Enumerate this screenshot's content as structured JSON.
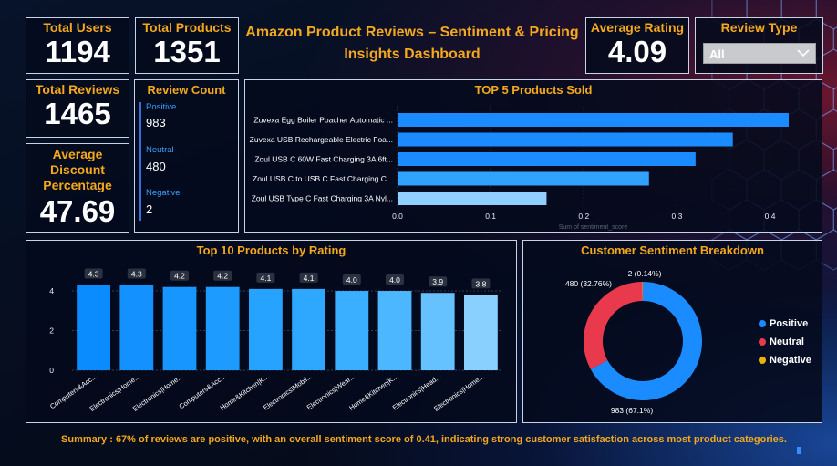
{
  "kpis": {
    "total_users_label": "Total Users",
    "total_users_value": "1194",
    "total_products_label": "Total Products",
    "total_products_value": "1351",
    "avg_rating_label": "Average Rating",
    "avg_rating_value": "4.09",
    "total_reviews_label": "Total Reviews",
    "total_reviews_value": "1465",
    "avg_discount_label": "Average Discount Percentage",
    "avg_discount_value": "47.69"
  },
  "dashboard_title": "Amazon Product Reviews – Sentiment & Pricing Insights Dashboard",
  "review_type": {
    "label": "Review Type",
    "selected": "All"
  },
  "review_count": {
    "title": "Review Count",
    "items": [
      {
        "label": "Positive",
        "value": "983"
      },
      {
        "label": "Neutral",
        "value": "480"
      },
      {
        "label": "Negative",
        "value": "2"
      }
    ]
  },
  "colors": {
    "accent": "#f4a81d",
    "positive": "#1a8cff",
    "neutral": "#e8394d",
    "negative": "#e8b400"
  },
  "chart_data": [
    {
      "id": "top5",
      "type": "bar",
      "orientation": "horizontal",
      "title": "TOP 5 Products Sold",
      "xlabel": "Sum of sentiment_score",
      "categories": [
        "Zuvexa Egg Boiler Poacher Automatic ...",
        "Zuvexa USB Rechargeable Electric Foa...",
        "Zoul USB C 60W Fast Charging 3A 6ft...",
        "Zoul USB C to USB C Fast Charging C...",
        "Zoul USB Type C Fast Charging 3A Nyl..."
      ],
      "values": [
        0.42,
        0.36,
        0.32,
        0.27,
        0.16
      ],
      "xlim": [
        0,
        0.42
      ],
      "xticks": [
        "0.0",
        "0.1",
        "0.2",
        "0.3",
        "0.4"
      ],
      "bar_colors": [
        "#1a8cff",
        "#1a8cff",
        "#1a8cff",
        "#2fa3ff",
        "#8fd0ff"
      ]
    },
    {
      "id": "top10",
      "type": "bar",
      "title": "Top 10 Products by Rating",
      "categories": [
        "Computers&Acc...",
        "Electronics|Home...",
        "Electronics|Home...",
        "Computers&Acc...",
        "Home&Kitchen|K...",
        "Electronics|Mobil...",
        "Electronics|Wear...",
        "Home&Kitchen|K...",
        "Electronics|Head...",
        "Electronics|Home..."
      ],
      "values": [
        4.3,
        4.3,
        4.2,
        4.2,
        4.1,
        4.1,
        4.0,
        4.0,
        3.9,
        3.8
      ],
      "labels": [
        "4.3",
        "4.3",
        "4.2",
        "4.2",
        "4.1",
        "4.1",
        "4.0",
        "4.0",
        "3.9",
        "3.8"
      ],
      "ylim": [
        0,
        4.6
      ],
      "yticks": [
        "0",
        "2",
        "4"
      ],
      "bar_colors": [
        "#0a8cff",
        "#1291ff",
        "#1896ff",
        "#1e9bff",
        "#26a2ff",
        "#2ea8ff",
        "#3aaeff",
        "#4cb6ff",
        "#66c2ff",
        "#8ad0ff"
      ]
    },
    {
      "id": "sentiment",
      "type": "pie",
      "donut": true,
      "title": "Customer Sentiment Breakdown",
      "categories": [
        "Positive",
        "Neutral",
        "Negative"
      ],
      "values": [
        983,
        480,
        2
      ],
      "labels": [
        "983 (67.1%)",
        "480 (32.76%)",
        "2 (0.14%)"
      ],
      "colors": [
        "#1a8cff",
        "#e8394d",
        "#e8b400"
      ],
      "legend": "right"
    }
  ],
  "summary": "Summary : 67% of reviews are positive, with an overall sentiment score of 0.41, indicating strong customer satisfaction across most product categories."
}
